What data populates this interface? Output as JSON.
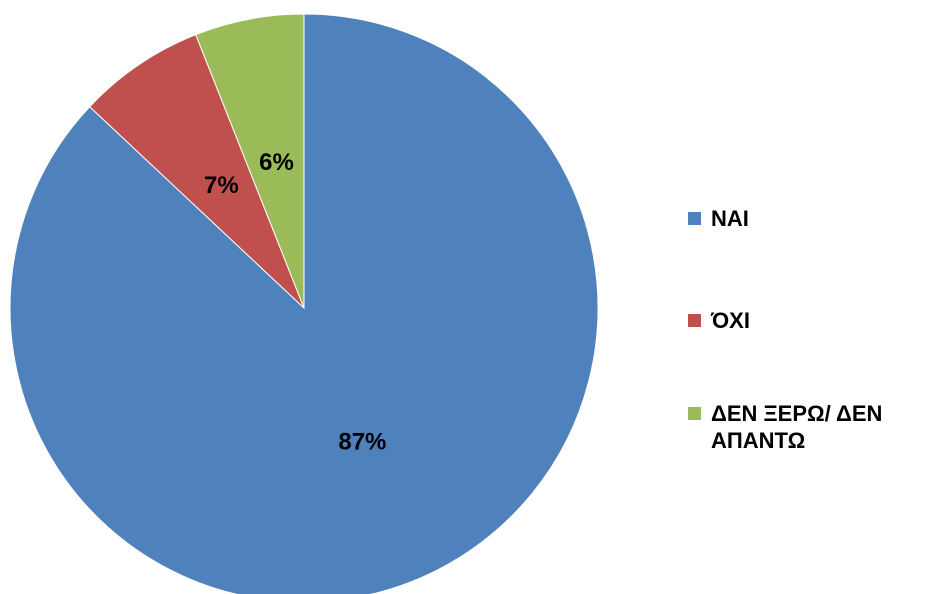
{
  "chart_data": {
    "type": "pie",
    "categories": [
      "NAI",
      "ΌΧΙ",
      "ΔΕΝ ΞΕΡΩ/ ΔΕΝ ΑΠΑΝΤΩ"
    ],
    "values": [
      87,
      7,
      6
    ],
    "value_labels": [
      "87%",
      "7%",
      "6%"
    ],
    "colors": [
      "#4f81bd",
      "#c0504d",
      "#9bbb59"
    ],
    "legend": "right"
  }
}
